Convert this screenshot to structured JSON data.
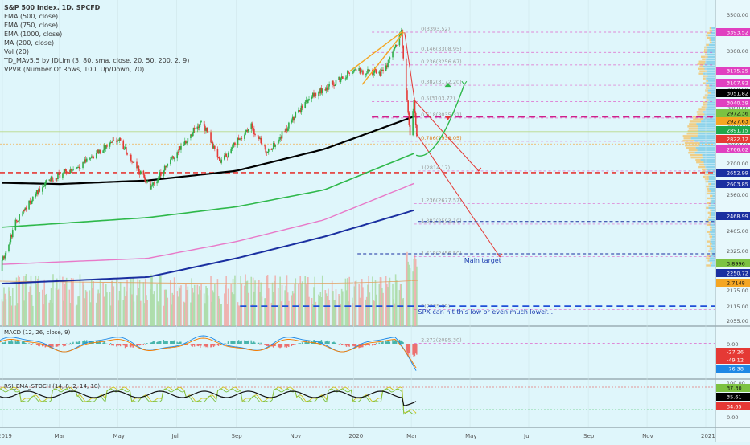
{
  "title": "S&P 500 Index, 1D, SPCFD",
  "indicators": [
    "EMA (500, close)",
    "EMA (750, close)",
    "EMA (1000, close)",
    "MA (200, close)",
    "Vol (20)",
    "TD_MAv5.5 by JDLim (3, 80, sma, close, 20, 50, 200, 2, 9)",
    "VPVR (Number Of Rows, 100, Up/Down, 70)"
  ],
  "macd_label": "MACD (12, 26, close, 9)",
  "rsi_label": "RSI_EMA_STOCH (14, 8, 2, 14, 10)",
  "x_ticks": [
    "2019",
    "Mar",
    "May",
    "Jul",
    "Sep",
    "Nov",
    "2020",
    "Mar",
    "May",
    "Jul",
    "Sep",
    "Nov",
    "2021"
  ],
  "fib_labels": [
    "0(3393.52)",
    "0.146(3308.95)",
    "0.236(3256.67)",
    "0.382(3172.20)",
    "0.5(3103.72)",
    "0.618(3035.31)",
    "0.786(2938.05)",
    "1(2814.17)",
    "1.236(2677.57)",
    "1.382(2593.10)",
    "1.618(2456.50)",
    "2(2235.39)",
    "2.272(2095.30)"
  ],
  "annotations": {
    "main_target": "Main target",
    "spx_low": "SPX can hit this low or even much lower..."
  },
  "price_axis": {
    "ticks": [
      "3500.00",
      "3400.00",
      "3300.00",
      "3200.00",
      "3100.00",
      "3000.00",
      "2900.00",
      "2800.00",
      "2700.00",
      "2600.00",
      "2560.00",
      "2485.00",
      "2405.00",
      "2325.00",
      "2250.00",
      "2175.00",
      "2115.00",
      "2055.00"
    ],
    "badges": [
      {
        "label": "3393.52",
        "color": "#e040c0"
      },
      {
        "label": "3175.25",
        "color": "#e040c0"
      },
      {
        "label": "3107.82",
        "color": "#e040c0"
      },
      {
        "label": "3051.82",
        "color": "#000000"
      },
      {
        "label": "3040.39",
        "color": "#e040c0"
      },
      {
        "label": "2972.36",
        "color": "#7cc242"
      },
      {
        "label": "2927.63",
        "color": "#f5a623"
      },
      {
        "label": "2891.15",
        "color": "#1fa84a"
      },
      {
        "label": "2822.12",
        "color": "#e53935"
      },
      {
        "label": "2766.02",
        "color": "#e040c0"
      },
      {
        "label": "2652.99",
        "color": "#1a2fa0"
      },
      {
        "label": "2603.85",
        "color": "#1a2fa0"
      },
      {
        "label": "2468.99",
        "color": "#1a2fa0"
      },
      {
        "label": "3.8996",
        "color": "#7cc242"
      },
      {
        "label": "2250.72",
        "color": "#1a2fa0"
      },
      {
        "label": "2.7148",
        "color": "#f5a623"
      }
    ]
  },
  "macd_axis": {
    "ticks": [
      "0.00",
      "-100.00"
    ],
    "badges": [
      {
        "label": "-27.26",
        "color": "#e53935"
      },
      {
        "label": "-49.12",
        "color": "#e53935"
      },
      {
        "label": "-76.38",
        "color": "#1e88e5"
      }
    ]
  },
  "rsi_axis": {
    "ticks": [
      "100.00",
      "0.00"
    ],
    "badges": [
      {
        "label": "37.30",
        "color": "#7cc242"
      },
      {
        "label": "35.61",
        "color": "#000000"
      },
      {
        "label": "34.65",
        "color": "#e53935"
      }
    ]
  },
  "colors": {
    "background": "#dff6fb",
    "ema500": "#000000",
    "ema750": "#2eb84a",
    "ema1000": "#e879c8",
    "ma200": "#1a2fa0",
    "up_candle": "#2eaf4a",
    "down_candle": "#e53935",
    "fib_line": "#e040c0",
    "target_line": "#1a2fa0",
    "support_line": "#e53935"
  },
  "chart_data": {
    "type": "line",
    "title": "S&P 500 Index, 1D, SPCFD",
    "xlabel": "",
    "ylabel": "",
    "x_range": [
      "2019-01-01",
      "2021-01-01"
    ],
    "ylim": [
      2040,
      3560
    ],
    "series": [
      {
        "name": "S&P 500 Index",
        "x": [
          "2018-12-24",
          "2019-01-15",
          "2019-02-15",
          "2019-03-15",
          "2019-04-15",
          "2019-05-01",
          "2019-06-03",
          "2019-07-26",
          "2019-08-15",
          "2019-09-15",
          "2019-10-03",
          "2019-11-15",
          "2019-12-31",
          "2020-01-31",
          "2020-02-19",
          "2020-02-28",
          "2020-03-03",
          "2020-03-06"
        ],
        "values": [
          2351,
          2610,
          2775,
          2822,
          2907,
          2945,
          2745,
          3025,
          2850,
          3007,
          2888,
          3120,
          3230,
          3225,
          3393,
          2954,
          3100,
          2972
        ]
      },
      {
        "name": "EMA (500, close)",
        "x": [
          "2019-01-01",
          "2019-03-01",
          "2019-06-01",
          "2019-09-01",
          "2019-12-01",
          "2020-03-06"
        ],
        "values": [
          2765,
          2760,
          2775,
          2815,
          2905,
          3045
        ]
      },
      {
        "name": "EMA (750, close)",
        "x": [
          "2019-01-01",
          "2019-06-01",
          "2019-09-01",
          "2019-12-01",
          "2020-03-06"
        ],
        "values": [
          2580,
          2620,
          2665,
          2735,
          2891
        ]
      },
      {
        "name": "EMA (1000, close)",
        "x": [
          "2019-01-01",
          "2019-06-01",
          "2019-09-01",
          "2019-12-01",
          "2020-03-06"
        ],
        "values": [
          2425,
          2450,
          2520,
          2610,
          2766
        ]
      },
      {
        "name": "MA (200, close)",
        "x": [
          "2019-01-01",
          "2019-06-01",
          "2019-09-01",
          "2019-12-01",
          "2020-03-06"
        ],
        "values": [
          2345,
          2372,
          2450,
          2540,
          2653
        ]
      }
    ],
    "horizontal_levels": [
      3393.52,
      3308.95,
      3256.67,
      3172.2,
      3103.72,
      3035.31,
      2938.05,
      2814.17,
      2677.57,
      2593.1,
      2456.5,
      2235.39,
      2095.3
    ],
    "projections": [
      {
        "from": [
          "2020-03-04",
          3110
        ],
        "to": [
          "2020-05-10",
          2814
        ],
        "style": "red-arrow"
      },
      {
        "from": [
          "2020-03-06",
          2972
        ],
        "to": [
          "2020-06-01",
          2456
        ],
        "style": "red-arrow"
      },
      {
        "from": [
          "2020-03-06",
          2880
        ],
        "to": [
          "2020-04-25",
          3175
        ],
        "style": "green-arrow"
      }
    ]
  }
}
